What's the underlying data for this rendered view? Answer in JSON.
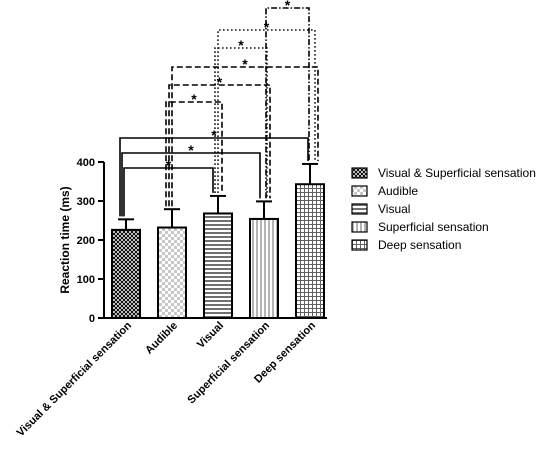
{
  "chart_data": {
    "type": "bar",
    "ylabel": "Reaction time (ms)",
    "ylim": [
      0,
      400
    ],
    "yticks": [
      0,
      100,
      200,
      300,
      400
    ],
    "categories": [
      "Visual & Superficial sensation",
      "Audible",
      "Visual",
      "Superficial sensation",
      "Deep sensation"
    ],
    "values": [
      226,
      232,
      268,
      254,
      343
    ],
    "errors": [
      27,
      47,
      45,
      45,
      52
    ],
    "patterns": [
      "crosshatch",
      "checker",
      "horizontal",
      "vertical",
      "grid"
    ],
    "legend": {
      "placement": "right",
      "entries": [
        "Visual & Superficial sensation",
        "Audible",
        "Visual",
        "Superficial sensation",
        "Deep sensation"
      ]
    },
    "significance": [
      {
        "from": 0,
        "to": 2,
        "label": "*",
        "style": "solid"
      },
      {
        "from": 0,
        "to": 3,
        "label": "*",
        "style": "solid"
      },
      {
        "from": 0,
        "to": 4,
        "label": "*",
        "style": "solid"
      },
      {
        "from": 1,
        "to": 2,
        "label": "*",
        "style": "dashed"
      },
      {
        "from": 1,
        "to": 3,
        "label": "*",
        "style": "dashed"
      },
      {
        "from": 1,
        "to": 4,
        "label": "*",
        "style": "dashed"
      },
      {
        "from": 2,
        "to": 3,
        "label": "*",
        "style": "dotted"
      },
      {
        "from": 2,
        "to": 4,
        "label": "*",
        "style": "dotted"
      },
      {
        "from": 3,
        "to": 4,
        "label": "*",
        "style": "dashdot"
      }
    ]
  }
}
